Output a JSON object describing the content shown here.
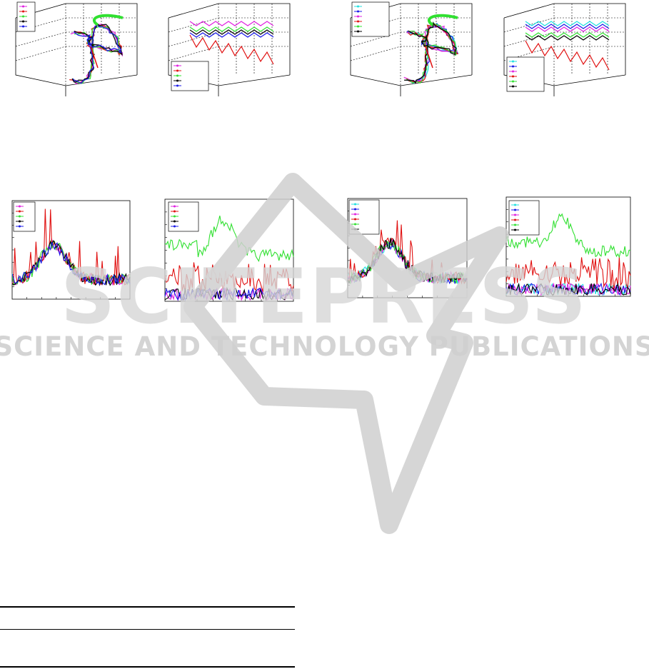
{
  "chart_data": [
    {
      "type": "line",
      "panel": "3d-trajectory-a",
      "series": [],
      "note_count_legend_entries": 5
    },
    {
      "type": "line",
      "panel": "3d-trajectory-b",
      "series": [],
      "note_count_legend_entries": 5
    },
    {
      "type": "line",
      "panel": "3d-trajectory-c",
      "series": [],
      "note_count_legend_entries": 6
    },
    {
      "type": "line",
      "panel": "3d-trajectory-d",
      "series": [],
      "note_count_legend_entries": 6
    },
    {
      "type": "line",
      "panel": "error-plot-a",
      "series": [],
      "note_count_legend_entries": 5
    },
    {
      "type": "line",
      "panel": "error-plot-b",
      "series": [],
      "note_count_legend_entries": 5
    },
    {
      "type": "line",
      "panel": "error-plot-c",
      "series": [],
      "note_count_legend_entries": 6
    },
    {
      "type": "line",
      "panel": "error-plot-d",
      "series": [],
      "note_count_legend_entries": 6
    }
  ],
  "colors": {
    "magenta": "#e020e0",
    "red": "#e01010",
    "green": "#30e030",
    "black": "#000000",
    "blue": "#1818e8",
    "cyan": "#20e0e0",
    "watermark": "#c8c8c8"
  },
  "watermark": {
    "line1": "SCITEPRESS",
    "line2": "SCIENCE AND TECHNOLOGY PUBLICATIONS"
  }
}
